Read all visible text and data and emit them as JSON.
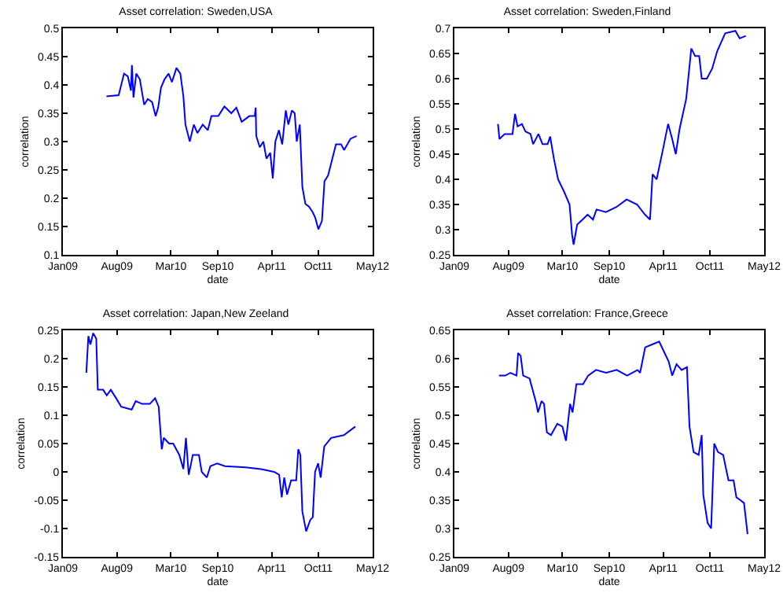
{
  "chart_data": [
    {
      "type": "line",
      "title": "Asset correlation: Sweden,USA",
      "xlabel": "date",
      "ylabel": "correlation",
      "xlim": [
        "2009-01-01",
        "2012-05-01"
      ],
      "xticks": [
        {
          "value": "2009-01-01",
          "label": "Jan09"
        },
        {
          "value": "2009-08-01",
          "label": "Aug09"
        },
        {
          "value": "2010-03-01",
          "label": "Mar10"
        },
        {
          "value": "2010-09-01",
          "label": "Sep10"
        },
        {
          "value": "2011-04-01",
          "label": "Apr11"
        },
        {
          "value": "2011-10-01",
          "label": "Oct11"
        },
        {
          "value": "2012-05-01",
          "label": "May12"
        }
      ],
      "ylim": [
        0.1,
        0.5
      ],
      "yticks": [
        0.1,
        0.15,
        0.2,
        0.25,
        0.3,
        0.35,
        0.4,
        0.45,
        0.5
      ],
      "grid": false,
      "marker": "none",
      "line_style": "solid",
      "series": [
        {
          "color": "#0000ff",
          "x": [
            "2009-06-21",
            "2009-08-08",
            "2009-08-29",
            "2009-09-13",
            "2009-09-25",
            "2009-09-29",
            "2009-10-05",
            "2009-10-16",
            "2009-10-30",
            "2009-11-16",
            "2009-11-30",
            "2009-12-17",
            "2009-12-31",
            "2010-01-10",
            "2010-01-21",
            "2010-02-04",
            "2010-02-20",
            "2010-03-05",
            "2010-03-23",
            "2010-04-07",
            "2010-04-19",
            "2010-04-27",
            "2010-05-14",
            "2010-05-30",
            "2010-06-13",
            "2010-07-04",
            "2010-07-24",
            "2010-08-07",
            "2010-09-03",
            "2010-09-27",
            "2010-10-24",
            "2010-11-13",
            "2010-12-04",
            "2011-01-03",
            "2011-01-24",
            "2011-01-28",
            "2011-01-30",
            "2011-02-13",
            "2011-02-27",
            "2011-03-11",
            "2011-03-26",
            "2011-04-05",
            "2011-04-15",
            "2011-04-29",
            "2011-05-12",
            "2011-05-26",
            "2011-06-05",
            "2011-06-19",
            "2011-06-30",
            "2011-07-08",
            "2011-07-20",
            "2011-07-30",
            "2011-08-11",
            "2011-08-25",
            "2011-09-09",
            "2011-09-19",
            "2011-10-01",
            "2011-10-15",
            "2011-10-25",
            "2011-11-08",
            "2011-11-25",
            "2011-12-09",
            "2011-12-29",
            "2012-01-10",
            "2012-02-04",
            "2012-02-28"
          ],
          "values": [
            0.38,
            0.382,
            0.42,
            0.415,
            0.39,
            0.435,
            0.378,
            0.42,
            0.41,
            0.365,
            0.375,
            0.37,
            0.345,
            0.36,
            0.395,
            0.41,
            0.42,
            0.405,
            0.43,
            0.42,
            0.38,
            0.33,
            0.3,
            0.33,
            0.315,
            0.33,
            0.32,
            0.345,
            0.345,
            0.362,
            0.35,
            0.36,
            0.335,
            0.345,
            0.345,
            0.36,
            0.31,
            0.29,
            0.3,
            0.27,
            0.28,
            0.235,
            0.3,
            0.32,
            0.295,
            0.355,
            0.33,
            0.355,
            0.35,
            0.3,
            0.33,
            0.22,
            0.19,
            0.185,
            0.175,
            0.165,
            0.145,
            0.16,
            0.23,
            0.24,
            0.27,
            0.295,
            0.295,
            0.285,
            0.305,
            0.31
          ]
        }
      ]
    },
    {
      "type": "line",
      "title": "Asset correlation: Sweden,Finland",
      "xlabel": "date",
      "ylabel": "correlation",
      "xlim": [
        "2009-01-01",
        "2012-05-01"
      ],
      "xticks": [
        {
          "value": "2009-01-01",
          "label": "Jan09"
        },
        {
          "value": "2009-08-01",
          "label": "Aug09"
        },
        {
          "value": "2010-03-01",
          "label": "Mar10"
        },
        {
          "value": "2010-09-01",
          "label": "Sep10"
        },
        {
          "value": "2011-04-01",
          "label": "Apr11"
        },
        {
          "value": "2011-10-01",
          "label": "Oct11"
        },
        {
          "value": "2012-05-01",
          "label": "May12"
        }
      ],
      "ylim": [
        0.25,
        0.7
      ],
      "yticks": [
        0.25,
        0.3,
        0.35,
        0.4,
        0.45,
        0.5,
        0.55,
        0.6,
        0.65,
        0.7
      ],
      "grid": false,
      "marker": "none",
      "line_style": "solid",
      "series": [
        {
          "color": "#0000ff",
          "x": [
            "2009-06-21",
            "2009-06-27",
            "2009-07-17",
            "2009-08-17",
            "2009-08-27",
            "2009-09-06",
            "2009-09-23",
            "2009-10-07",
            "2009-10-27",
            "2009-11-06",
            "2009-11-27",
            "2009-12-13",
            "2010-01-02",
            "2010-01-12",
            "2010-01-27",
            "2010-02-12",
            "2010-03-08",
            "2010-03-29",
            "2010-04-08",
            "2010-04-14",
            "2010-04-28",
            "2010-05-19",
            "2010-06-08",
            "2010-06-29",
            "2010-07-13",
            "2010-08-19",
            "2010-09-29",
            "2010-11-08",
            "2010-12-19",
            "2011-01-19",
            "2011-02-08",
            "2011-02-18",
            "2011-03-06",
            "2011-03-31",
            "2011-04-20",
            "2011-05-06",
            "2011-05-20",
            "2011-06-04",
            "2011-06-30",
            "2011-07-20",
            "2011-08-04",
            "2011-08-20",
            "2011-08-30",
            "2011-09-19",
            "2011-10-10",
            "2011-10-30",
            "2011-11-30",
            "2012-01-09",
            "2012-01-26",
            "2012-02-19"
          ],
          "values": [
            0.51,
            0.48,
            0.49,
            0.49,
            0.53,
            0.505,
            0.51,
            0.495,
            0.49,
            0.47,
            0.49,
            0.47,
            0.47,
            0.485,
            0.44,
            0.4,
            0.375,
            0.35,
            0.29,
            0.27,
            0.31,
            0.32,
            0.33,
            0.32,
            0.34,
            0.335,
            0.345,
            0.36,
            0.35,
            0.33,
            0.32,
            0.41,
            0.4,
            0.46,
            0.51,
            0.48,
            0.45,
            0.5,
            0.56,
            0.66,
            0.645,
            0.645,
            0.6,
            0.6,
            0.62,
            0.655,
            0.69,
            0.695,
            0.68,
            0.685
          ]
        }
      ]
    },
    {
      "type": "line",
      "title": "Asset correlation: Japan,New Zeeland",
      "xlabel": "date",
      "ylabel": "correlation",
      "xlim": [
        "2009-01-01",
        "2012-05-01"
      ],
      "xticks": [
        {
          "value": "2009-01-01",
          "label": "Jan09"
        },
        {
          "value": "2009-08-01",
          "label": "Aug09"
        },
        {
          "value": "2010-03-01",
          "label": "Mar10"
        },
        {
          "value": "2010-09-01",
          "label": "Sep10"
        },
        {
          "value": "2011-04-01",
          "label": "Apr11"
        },
        {
          "value": "2011-10-01",
          "label": "Oct11"
        },
        {
          "value": "2012-05-01",
          "label": "May12"
        }
      ],
      "ylim": [
        -0.15,
        0.25
      ],
      "yticks": [
        -0.15,
        -0.1,
        -0.05,
        0,
        0.05,
        0.1,
        0.15,
        0.2,
        0.25
      ],
      "grid": false,
      "marker": "none",
      "line_style": "solid",
      "series": [
        {
          "color": "#0000ff",
          "x": [
            "2009-04-03",
            "2009-04-11",
            "2009-04-19",
            "2009-04-30",
            "2009-05-12",
            "2009-05-18",
            "2009-06-08",
            "2009-06-22",
            "2009-07-08",
            "2009-07-29",
            "2009-08-18",
            "2009-09-28",
            "2009-10-14",
            "2009-11-08",
            "2009-12-08",
            "2009-12-29",
            "2010-01-12",
            "2010-01-24",
            "2010-02-01",
            "2010-02-22",
            "2010-03-10",
            "2010-04-03",
            "2010-04-19",
            "2010-04-29",
            "2010-05-10",
            "2010-05-26",
            "2010-06-19",
            "2010-06-30",
            "2010-07-20",
            "2010-08-03",
            "2010-08-30",
            "2010-09-29",
            "2010-12-19",
            "2011-02-18",
            "2011-04-10",
            "2011-04-30",
            "2011-05-10",
            "2011-05-20",
            "2011-05-31",
            "2011-06-16",
            "2011-07-06",
            "2011-07-14",
            "2011-07-22",
            "2011-07-30",
            "2011-08-14",
            "2011-08-30",
            "2011-09-09",
            "2011-09-18",
            "2011-09-30",
            "2011-10-10",
            "2011-10-24",
            "2011-11-20",
            "2012-01-09",
            "2012-02-23"
          ],
          "values": [
            0.175,
            0.24,
            0.225,
            0.245,
            0.235,
            0.145,
            0.145,
            0.135,
            0.145,
            0.13,
            0.115,
            0.11,
            0.125,
            0.12,
            0.12,
            0.13,
            0.115,
            0.04,
            0.06,
            0.05,
            0.05,
            0.03,
            0.005,
            0.06,
            -0.005,
            0.03,
            0.03,
            0.0,
            -0.01,
            0.01,
            0.015,
            0.01,
            0.008,
            0.005,
            0.0,
            -0.005,
            -0.045,
            -0.01,
            -0.04,
            -0.015,
            -0.015,
            0.04,
            0.03,
            -0.07,
            -0.105,
            -0.085,
            -0.08,
            0.0,
            0.015,
            -0.01,
            0.045,
            0.06,
            0.065,
            0.08
          ]
        }
      ]
    },
    {
      "type": "line",
      "title": "Asset correlation: France,Greece",
      "xlabel": "date",
      "ylabel": "correlation",
      "xlim": [
        "2009-01-01",
        "2012-05-01"
      ],
      "xticks": [
        {
          "value": "2009-01-01",
          "label": "Jan09"
        },
        {
          "value": "2009-08-01",
          "label": "Aug09"
        },
        {
          "value": "2010-03-01",
          "label": "Mar10"
        },
        {
          "value": "2010-09-01",
          "label": "Sep10"
        },
        {
          "value": "2011-04-01",
          "label": "Apr11"
        },
        {
          "value": "2011-10-01",
          "label": "Oct11"
        },
        {
          "value": "2012-05-01",
          "label": "May12"
        }
      ],
      "ylim": [
        0.25,
        0.65
      ],
      "yticks": [
        0.25,
        0.3,
        0.35,
        0.4,
        0.45,
        0.5,
        0.55,
        0.6,
        0.65
      ],
      "grid": false,
      "marker": "none",
      "line_style": "solid",
      "series": [
        {
          "color": "#0000ff",
          "x": [
            "2009-06-25",
            "2009-07-20",
            "2009-08-09",
            "2009-09-02",
            "2009-09-08",
            "2009-09-18",
            "2009-09-28",
            "2009-10-23",
            "2009-11-04",
            "2009-11-19",
            "2009-11-25",
            "2009-12-09",
            "2009-12-19",
            "2009-12-30",
            "2010-01-15",
            "2010-02-09",
            "2010-03-01",
            "2010-03-15",
            "2010-03-31",
            "2010-04-10",
            "2010-04-25",
            "2010-05-21",
            "2010-06-10",
            "2010-07-11",
            "2010-08-20",
            "2010-09-30",
            "2010-11-10",
            "2010-12-21",
            "2010-12-31",
            "2011-01-20",
            "2011-02-16",
            "2011-03-16",
            "2011-04-06",
            "2011-04-22",
            "2011-05-06",
            "2011-05-23",
            "2011-06-12",
            "2011-07-03",
            "2011-07-13",
            "2011-07-29",
            "2011-08-18",
            "2011-08-30",
            "2011-09-05",
            "2011-09-22",
            "2011-10-06",
            "2011-10-18",
            "2011-11-02",
            "2011-11-22",
            "2011-12-13",
            "2012-01-02",
            "2012-01-13",
            "2012-01-29",
            "2012-02-12",
            "2012-02-26"
          ],
          "values": [
            0.57,
            0.57,
            0.575,
            0.57,
            0.61,
            0.605,
            0.57,
            0.565,
            0.545,
            0.52,
            0.505,
            0.525,
            0.52,
            0.47,
            0.465,
            0.485,
            0.48,
            0.455,
            0.52,
            0.505,
            0.555,
            0.555,
            0.57,
            0.58,
            0.575,
            0.58,
            0.57,
            0.58,
            0.575,
            0.62,
            0.625,
            0.63,
            0.61,
            0.595,
            0.57,
            0.59,
            0.58,
            0.585,
            0.48,
            0.435,
            0.43,
            0.465,
            0.36,
            0.31,
            0.3,
            0.45,
            0.435,
            0.43,
            0.385,
            0.385,
            0.355,
            0.35,
            0.345,
            0.29
          ]
        }
      ]
    }
  ]
}
